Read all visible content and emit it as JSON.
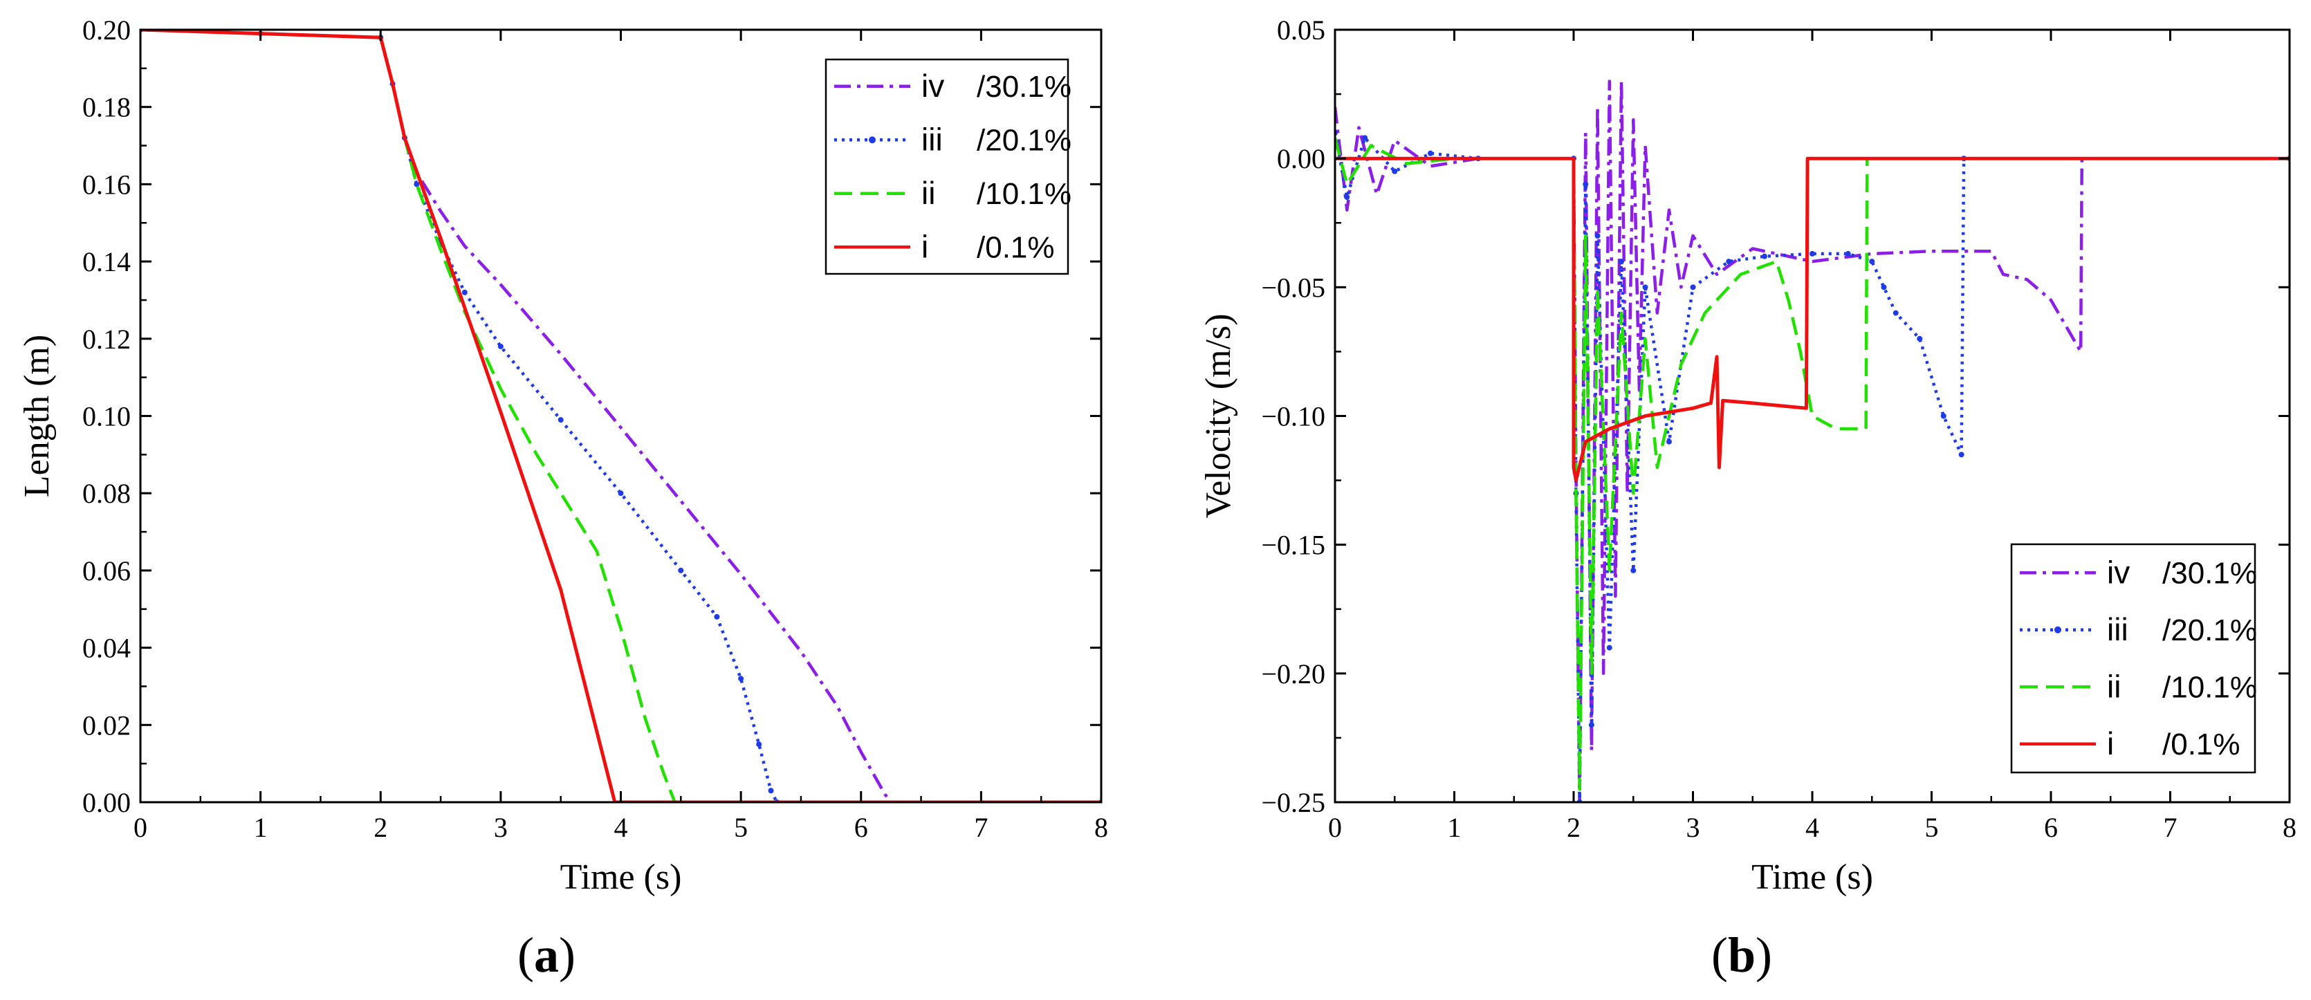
{
  "chart_data": [
    {
      "panel": "(a)",
      "panel_letter": "a",
      "type": "line",
      "xlabel": "Time (s)",
      "ylabel": "Length (m)",
      "xlim": [
        0,
        8
      ],
      "ylim": [
        0,
        0.2
      ],
      "xticks": [
        "0",
        "1",
        "2",
        "3",
        "4",
        "5",
        "6",
        "7",
        "8"
      ],
      "yticks": [
        "0.00",
        "0.02",
        "0.04",
        "0.06",
        "0.08",
        "0.10",
        "0.12",
        "0.14",
        "0.16",
        "0.18",
        "0.20"
      ],
      "legend_position": "top-right",
      "series": [
        {
          "name": "iv",
          "label": "/30.1%",
          "color": "#8B1FE8",
          "style": "dashdot",
          "x": [
            0,
            1,
            2,
            2.1,
            2.2,
            2.3,
            2.5,
            2.7,
            3,
            3.5,
            4,
            4.5,
            5,
            5.5,
            5.8,
            6.0,
            6.2,
            6.25,
            8
          ],
          "y": [
            0.2,
            0.199,
            0.198,
            0.186,
            0.172,
            0.163,
            0.153,
            0.144,
            0.134,
            0.116,
            0.097,
            0.078,
            0.059,
            0.039,
            0.025,
            0.013,
            0.002,
            0,
            0
          ]
        },
        {
          "name": "iii",
          "label": "/20.1%",
          "color": "#1F3BE8",
          "style": "dotted",
          "x": [
            0,
            1,
            2,
            2.1,
            2.2,
            2.3,
            2.5,
            2.7,
            3,
            3.5,
            4,
            4.5,
            4.8,
            5.0,
            5.15,
            5.25,
            5.3,
            8
          ],
          "y": [
            0.2,
            0.199,
            0.198,
            0.186,
            0.172,
            0.16,
            0.145,
            0.132,
            0.118,
            0.099,
            0.08,
            0.06,
            0.048,
            0.032,
            0.015,
            0.003,
            0,
            0
          ]
        },
        {
          "name": "ii",
          "label": "/10.1%",
          "color": "#22E000",
          "style": "dashed",
          "x": [
            0,
            1,
            2,
            2.1,
            2.2,
            2.3,
            2.5,
            2.7,
            3,
            3.3,
            3.6,
            3.8,
            4.0,
            4.2,
            4.35,
            4.45,
            8
          ],
          "y": [
            0.2,
            0.199,
            0.198,
            0.186,
            0.172,
            0.16,
            0.143,
            0.127,
            0.107,
            0.09,
            0.075,
            0.065,
            0.045,
            0.022,
            0.008,
            0,
            0
          ]
        },
        {
          "name": "i",
          "label": "/0.1%",
          "color": "#F01010",
          "style": "solid",
          "x": [
            0,
            1,
            2,
            2.1,
            2.2,
            2.5,
            3,
            3.5,
            3.95,
            8
          ],
          "y": [
            0.2,
            0.199,
            0.198,
            0.186,
            0.172,
            0.146,
            0.101,
            0.055,
            0,
            0
          ]
        }
      ]
    },
    {
      "panel": "(b)",
      "panel_letter": "b",
      "type": "line",
      "xlabel": "Time (s)",
      "ylabel": "Velocity (m/s)",
      "xlim": [
        0,
        8
      ],
      "ylim": [
        -0.25,
        0.05
      ],
      "xticks": [
        "0",
        "1",
        "2",
        "3",
        "4",
        "5",
        "6",
        "7",
        "8"
      ],
      "yticks": [
        "−0.25",
        "−0.20",
        "−0.15",
        "−0.10",
        "−0.05",
        "0.00",
        "0.05"
      ],
      "legend_position": "bottom-right",
      "series": [
        {
          "name": "iv",
          "label": "/30.1%",
          "color": "#8B1FE8",
          "style": "dashdot",
          "x": [
            0,
            0.1,
            0.2,
            0.35,
            0.5,
            0.8,
            1.2,
            2.0,
            2.02,
            2.05,
            2.1,
            2.15,
            2.2,
            2.25,
            2.3,
            2.35,
            2.4,
            2.45,
            2.5,
            2.55,
            2.6,
            2.7,
            2.8,
            2.9,
            3.0,
            3.2,
            3.5,
            4.0,
            4.5,
            5.0,
            5.5,
            5.6,
            5.8,
            6.0,
            6.25,
            6.26,
            8
          ],
          "y": [
            0.02,
            -0.02,
            0.012,
            -0.014,
            0.007,
            -0.003,
            0,
            0,
            -0.12,
            -0.25,
            0.01,
            -0.23,
            0.02,
            -0.2,
            0.03,
            -0.17,
            0.03,
            -0.13,
            0.015,
            -0.09,
            0.005,
            -0.06,
            -0.02,
            -0.05,
            -0.03,
            -0.045,
            -0.035,
            -0.04,
            -0.037,
            -0.036,
            -0.036,
            -0.045,
            -0.047,
            -0.055,
            -0.075,
            0,
            0
          ]
        },
        {
          "name": "iii",
          "label": "/20.1%",
          "color": "#1F3BE8",
          "style": "dotted",
          "x": [
            0,
            0.1,
            0.25,
            0.5,
            0.8,
            1.2,
            2.0,
            2.02,
            2.05,
            2.1,
            2.15,
            2.2,
            2.3,
            2.4,
            2.5,
            2.6,
            2.8,
            3.0,
            3.3,
            3.6,
            4.0,
            4.3,
            4.5,
            4.6,
            4.7,
            4.9,
            5.1,
            5.25,
            5.27,
            8
          ],
          "y": [
            0.01,
            -0.015,
            0.008,
            -0.005,
            0.002,
            0,
            0,
            -0.13,
            -0.25,
            -0.01,
            -0.22,
            -0.03,
            -0.19,
            -0.04,
            -0.16,
            -0.05,
            -0.11,
            -0.05,
            -0.04,
            -0.038,
            -0.037,
            -0.037,
            -0.04,
            -0.05,
            -0.06,
            -0.07,
            -0.1,
            -0.115,
            0,
            0
          ]
        },
        {
          "name": "ii",
          "label": "/10.1%",
          "color": "#22E000",
          "style": "dashed",
          "x": [
            0,
            0.1,
            0.3,
            0.6,
            1.0,
            2.0,
            2.02,
            2.05,
            2.1,
            2.15,
            2.2,
            2.3,
            2.4,
            2.5,
            2.6,
            2.7,
            2.9,
            3.1,
            3.4,
            3.7,
            3.8,
            3.9,
            4.0,
            4.2,
            4.45,
            4.46,
            8
          ],
          "y": [
            0.008,
            -0.01,
            0.005,
            -0.002,
            0,
            0,
            -0.13,
            -0.245,
            -0.03,
            -0.2,
            -0.05,
            -0.16,
            -0.06,
            -0.13,
            -0.07,
            -0.12,
            -0.08,
            -0.06,
            -0.045,
            -0.04,
            -0.055,
            -0.075,
            -0.1,
            -0.105,
            -0.105,
            0,
            0
          ]
        },
        {
          "name": "i",
          "label": "/0.1%",
          "color": "#F01010",
          "style": "solid",
          "x": [
            0,
            1,
            2,
            2.0,
            2.02,
            2.1,
            2.3,
            2.6,
            3.0,
            3.15,
            3.2,
            3.22,
            3.25,
            3.5,
            3.95,
            3.96,
            8
          ],
          "y": [
            0,
            0,
            0,
            -0.12,
            -0.125,
            -0.11,
            -0.105,
            -0.1,
            -0.097,
            -0.095,
            -0.077,
            -0.12,
            -0.094,
            -0.095,
            -0.097,
            0,
            0
          ]
        }
      ]
    }
  ]
}
